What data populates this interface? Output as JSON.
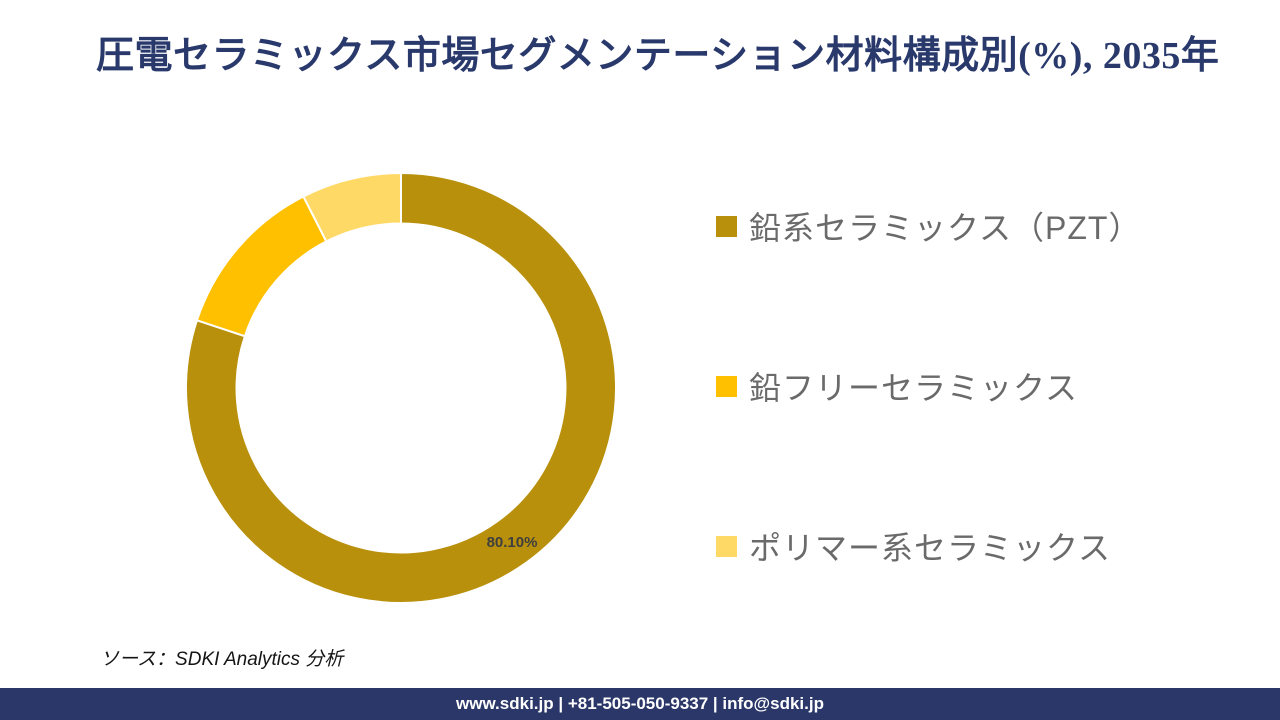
{
  "title": "圧電セラミックス市場セグメンテーション材料構成別(%), 2035年",
  "chart_data": {
    "type": "pie",
    "subtype": "donut",
    "title": "圧電セラミックス市場セグメンテーション材料構成別(%), 2035年",
    "unit": "%",
    "categories": [
      "鉛系セラミックス（PZT）",
      "鉛フリーセラミックス",
      "ポリマー系セラミックス"
    ],
    "values": [
      80.1,
      12.4,
      7.5
    ],
    "colors": [
      "#B8900B",
      "#FFC000",
      "#FFD966"
    ],
    "data_labels": [
      "80.10%",
      "",
      ""
    ],
    "data_label_color": "#3F3F3F",
    "start_angle_deg": 0,
    "direction": "clockwise",
    "inner_radius_ratio": 0.765,
    "legend_position": "right",
    "separator_color": "#ffffff"
  },
  "legend": {
    "items": [
      {
        "label": "鉛系セラミックス（PZT）",
        "color": "#B8900B"
      },
      {
        "label": "鉛フリーセラミックス",
        "color": "#FFC000"
      },
      {
        "label": "ポリマー系セラミックス",
        "color": "#FFD966"
      }
    ]
  },
  "source": {
    "text": "ソース：SDKI Analytics  分析"
  },
  "footer": {
    "text": "www.sdki.jp | +81-505-050-9337 | info@sdki.jp",
    "bg_color": "#2A3768"
  },
  "theme": {
    "title_color": "#29396B",
    "legend_text_color": "#6a6a6a"
  }
}
